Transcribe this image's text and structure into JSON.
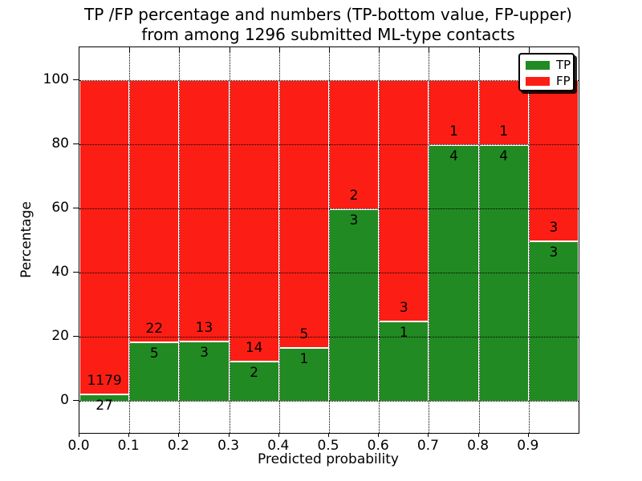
{
  "chart_data": {
    "type": "bar",
    "subtype": "stacked-percentage-histogram",
    "title_line1": "TP /FP percentage and numbers (TP-bottom value, FP-upper)",
    "title_line2": "from among 1296 submitted ML-type contacts",
    "xlabel": "Predicted probability",
    "ylabel": "Percentage",
    "total_contacts": 1296,
    "xlim": [
      0.0,
      1.0
    ],
    "ylim": [
      -10,
      110
    ],
    "grid": true,
    "x_tick_labels": [
      "0.0",
      "0.1",
      "0.2",
      "0.3",
      "0.4",
      "0.5",
      "0.6",
      "0.7",
      "0.8",
      "0.9"
    ],
    "y_tick_labels": [
      "0",
      "20",
      "40",
      "60",
      "80",
      "100"
    ],
    "y_tick_values": [
      0,
      20,
      40,
      60,
      80,
      100
    ],
    "colors": {
      "tp": "#228a22",
      "fp": "#fc1e14"
    },
    "legend": {
      "position": "upper-right",
      "entries": [
        {
          "label": "TP",
          "color": "#228a22"
        },
        {
          "label": "FP",
          "color": "#fc1e14"
        }
      ]
    },
    "bins": [
      {
        "range": "0.0-0.1",
        "tp": 27,
        "fp": 1179,
        "tp_percent": 2.2
      },
      {
        "range": "0.1-0.2",
        "tp": 5,
        "fp": 22,
        "tp_percent": 18.5
      },
      {
        "range": "0.2-0.3",
        "tp": 3,
        "fp": 13,
        "tp_percent": 18.8
      },
      {
        "range": "0.3-0.4",
        "tp": 2,
        "fp": 14,
        "tp_percent": 12.5
      },
      {
        "range": "0.4-0.5",
        "tp": 1,
        "fp": 5,
        "tp_percent": 16.7
      },
      {
        "range": "0.5-0.6",
        "tp": 3,
        "fp": 2,
        "tp_percent": 60.0
      },
      {
        "range": "0.6-0.7",
        "tp": 1,
        "fp": 3,
        "tp_percent": 25.0
      },
      {
        "range": "0.7-0.8",
        "tp": 4,
        "fp": 1,
        "tp_percent": 80.0
      },
      {
        "range": "0.8-0.9",
        "tp": 4,
        "fp": 1,
        "tp_percent": 80.0
      },
      {
        "range": "0.9-1.0",
        "tp": 3,
        "fp": 3,
        "tp_percent": 50.0
      }
    ]
  }
}
